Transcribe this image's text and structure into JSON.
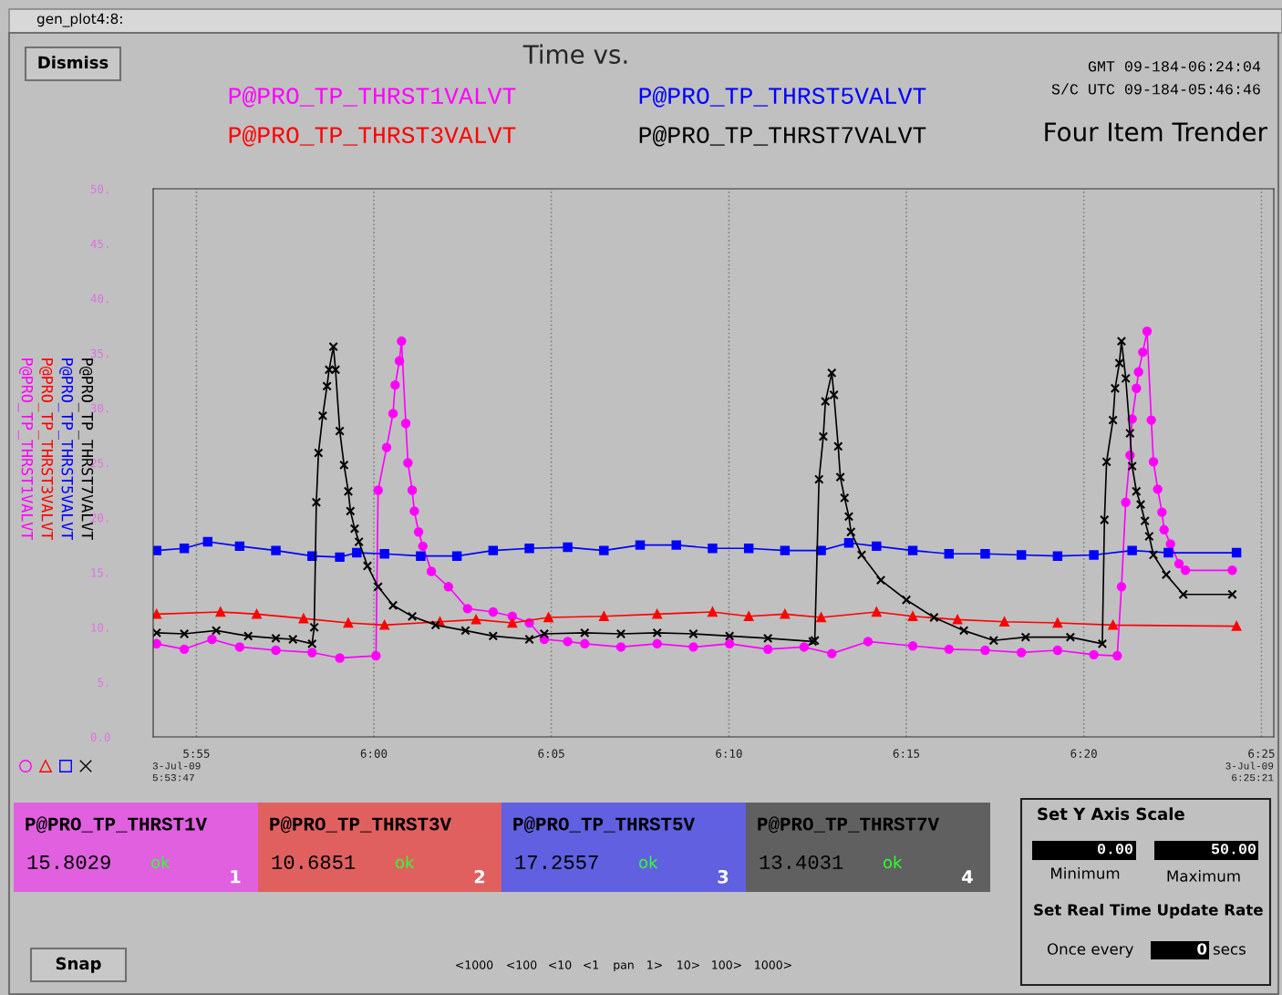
{
  "chart_data": {
    "type": "line",
    "title": "Time vs.",
    "annotations": [
      "gen_plot4:8:",
      "Dismiss",
      "GMT 09-184-06:24:04",
      "S/C UTC 09-184-05:46:46",
      "Four Item Trender",
      "3-Jul-09\n5:53:47",
      "3-Jul-09\n6:25:21",
      "P@PRO_TP_THRST1V",
      "P@PRO_TP_THRST3V",
      "P@PRO_TP_THRST5V",
      "P@PRO_TP_THRST7V",
      "15.8029",
      "10.6851",
      "17.2557",
      "13.4031",
      "ok",
      "ok",
      "ok",
      "ok",
      "1",
      "2",
      "3",
      "4",
      "Set Y Axis Scale",
      "0.00",
      "50.00",
      "Minimum",
      "Maximum",
      "Set Real Time Update Rate",
      "Once every",
      "0",
      "secs",
      "Snap",
      "<1000",
      "<100",
      "<10",
      "<1",
      "pan",
      "1>",
      "10>",
      "100>",
      "1000>"
    ],
    "xlim": [
      5.8964,
      6.4225
    ],
    "xticks": [
      {
        "value": 5.9167,
        "label": "5:55"
      },
      {
        "value": 6.0,
        "label": "6:00"
      },
      {
        "value": 6.0833,
        "label": "6:05"
      },
      {
        "value": 6.1667,
        "label": "6:10"
      },
      {
        "value": 6.25,
        "label": "6:15"
      },
      {
        "value": 6.3333,
        "label": "6:20"
      },
      {
        "value": 6.4167,
        "label": "6:25"
      }
    ],
    "ylim": [
      0,
      50
    ],
    "yticks": [
      {
        "value": 0,
        "label": "0.0"
      },
      {
        "value": 5,
        "label": "5."
      },
      {
        "value": 10,
        "label": "10."
      },
      {
        "value": 15,
        "label": "15."
      },
      {
        "value": 20,
        "label": "20."
      },
      {
        "value": 25,
        "label": "25."
      },
      {
        "value": 30,
        "label": "30."
      },
      {
        "value": 35,
        "label": "35."
      },
      {
        "value": 40,
        "label": "40."
      },
      {
        "value": 45,
        "label": "45."
      },
      {
        "value": 50,
        "label": "50."
      }
    ],
    "grid": "x",
    "series": [
      {
        "name": "P@PRO_TP_THRST1VALVT",
        "color": "#ff00ff",
        "marker": "circle",
        "x": [
          5.898,
          5.911,
          5.924,
          5.937,
          5.954,
          5.971,
          5.984,
          6.001,
          6.002,
          6.006,
          6.009,
          6.01,
          6.012,
          6.013,
          6.015,
          6.016,
          6.018,
          6.019,
          6.021,
          6.023,
          6.027,
          6.035,
          6.044,
          6.056,
          6.065,
          6.073,
          6.08,
          6.091,
          6.099,
          6.116,
          6.133,
          6.15,
          6.167,
          6.185,
          6.202,
          6.215,
          6.232,
          6.253,
          6.27,
          6.287,
          6.304,
          6.321,
          6.338,
          6.349,
          6.351,
          6.353,
          6.355,
          6.356,
          6.358,
          6.359,
          6.361,
          6.363,
          6.365,
          6.366,
          6.368,
          6.37,
          6.371,
          6.374,
          6.378,
          6.381,
          6.403
        ],
        "values": [
          8.5,
          8.0,
          8.9,
          8.2,
          7.9,
          7.7,
          7.2,
          7.4,
          22.5,
          26.4,
          29.5,
          32.1,
          34.3,
          36.1,
          28.6,
          25.0,
          22.5,
          20.6,
          18.7,
          17.4,
          15.1,
          13.7,
          11.7,
          11.4,
          11.0,
          10.4,
          8.9,
          8.7,
          8.5,
          8.2,
          8.5,
          8.2,
          8.5,
          8.0,
          8.2,
          7.6,
          8.7,
          8.3,
          8.0,
          7.9,
          7.7,
          7.9,
          7.5,
          7.4,
          13.7,
          21.4,
          25.7,
          29.0,
          31.8,
          33.3,
          35.1,
          37.0,
          28.9,
          25.1,
          22.6,
          20.5,
          18.9,
          17.6,
          15.8,
          15.2,
          15.2
        ]
      },
      {
        "name": "P@PRO_TP_THRST3VALVT",
        "color": "#ff0000",
        "marker": "triangle",
        "x": [
          5.898,
          5.928,
          5.945,
          5.967,
          5.988,
          6.005,
          6.031,
          6.048,
          6.065,
          6.082,
          6.108,
          6.133,
          6.159,
          6.176,
          6.193,
          6.21,
          6.236,
          6.253,
          6.274,
          6.296,
          6.321,
          6.347,
          6.405
        ],
        "values": [
          11.2,
          11.4,
          11.2,
          10.8,
          10.4,
          10.2,
          10.5,
          10.7,
          10.4,
          10.9,
          11.0,
          11.2,
          11.4,
          11.0,
          11.2,
          10.9,
          11.4,
          11.0,
          10.7,
          10.5,
          10.4,
          10.2,
          10.1
        ]
      },
      {
        "name": "P@PRO_TP_THRST5VALVT",
        "color": "#0000ff",
        "marker": "square",
        "x": [
          5.898,
          5.911,
          5.922,
          5.937,
          5.954,
          5.971,
          5.984,
          5.992,
          6.005,
          6.022,
          6.039,
          6.056,
          6.073,
          6.091,
          6.108,
          6.125,
          6.142,
          6.159,
          6.176,
          6.193,
          6.21,
          6.223,
          6.236,
          6.253,
          6.27,
          6.287,
          6.304,
          6.321,
          6.338,
          6.356,
          6.373,
          6.405
        ],
        "values": [
          17.0,
          17.2,
          17.8,
          17.4,
          17.0,
          16.5,
          16.4,
          16.8,
          16.7,
          16.5,
          16.5,
          17.0,
          17.2,
          17.3,
          17.0,
          17.5,
          17.5,
          17.2,
          17.2,
          17.0,
          17.0,
          17.7,
          17.4,
          17.0,
          16.7,
          16.7,
          16.6,
          16.5,
          16.6,
          17.0,
          16.8,
          16.8
        ]
      },
      {
        "name": "P@PRO_TP_THRST7VALVT",
        "color": "#000000",
        "marker": "cross",
        "x": [
          5.898,
          5.911,
          5.926,
          5.941,
          5.954,
          5.962,
          5.971,
          5.972,
          5.973,
          5.974,
          5.976,
          5.978,
          5.979,
          5.981,
          5.982,
          5.984,
          5.986,
          5.988,
          5.989,
          5.991,
          5.993,
          5.997,
          6.002,
          6.009,
          6.018,
          6.029,
          6.043,
          6.056,
          6.073,
          6.08,
          6.099,
          6.116,
          6.133,
          6.15,
          6.167,
          6.185,
          6.206,
          6.207,
          6.209,
          6.211,
          6.212,
          6.215,
          6.216,
          6.218,
          6.219,
          6.221,
          6.223,
          6.224,
          6.229,
          6.238,
          6.25,
          6.263,
          6.277,
          6.291,
          6.306,
          6.327,
          6.342,
          6.343,
          6.344,
          6.347,
          6.348,
          6.35,
          6.351,
          6.353,
          6.355,
          6.356,
          6.358,
          6.36,
          6.362,
          6.364,
          6.366,
          6.372,
          6.38,
          6.403
        ],
        "values": [
          9.5,
          9.4,
          9.7,
          9.2,
          9.0,
          8.9,
          8.5,
          10.0,
          21.4,
          25.9,
          29.3,
          32.0,
          33.5,
          35.6,
          33.5,
          27.9,
          24.8,
          22.4,
          20.6,
          19.0,
          17.8,
          15.6,
          13.7,
          12.0,
          11.0,
          10.2,
          9.7,
          9.2,
          8.9,
          9.4,
          9.5,
          9.4,
          9.5,
          9.4,
          9.2,
          9.0,
          8.7,
          8.8,
          23.5,
          27.4,
          30.6,
          33.2,
          31.2,
          26.5,
          23.7,
          21.8,
          20.1,
          18.7,
          16.6,
          14.3,
          12.5,
          10.9,
          9.7,
          8.8,
          9.1,
          9.1,
          8.5,
          19.8,
          25.1,
          28.9,
          31.8,
          34.1,
          36.1,
          32.7,
          27.7,
          24.7,
          22.4,
          21.2,
          19.7,
          18.3,
          16.6,
          14.8,
          13.0,
          13.0
        ]
      }
    ]
  }
}
